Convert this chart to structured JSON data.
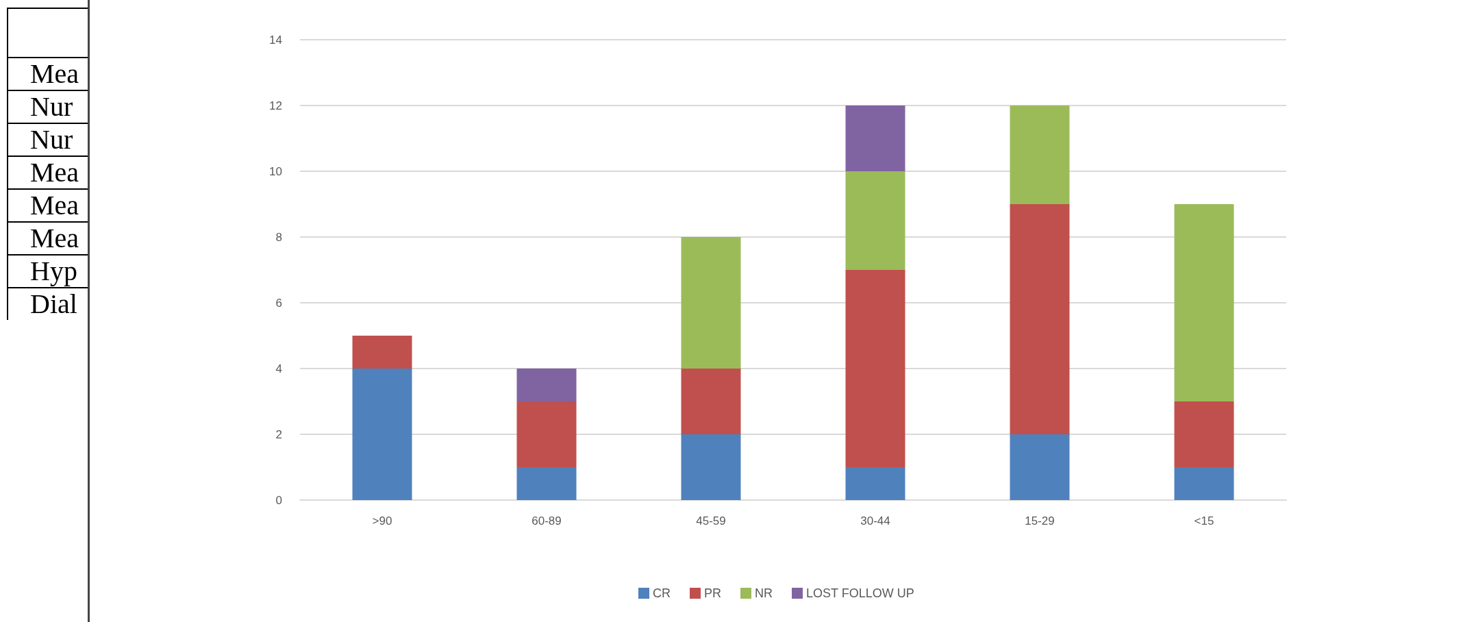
{
  "chart_data": {
    "type": "bar",
    "stacked": true,
    "categories": [
      ">90",
      "60-89",
      "45-59",
      "30-44",
      "15-29",
      "<15"
    ],
    "series": [
      {
        "name": "CR",
        "color": "#4f81bd",
        "values": [
          4,
          1,
          2,
          1,
          2,
          1
        ]
      },
      {
        "name": "PR",
        "color": "#c0504d",
        "values": [
          1,
          2,
          2,
          6,
          7,
          2
        ]
      },
      {
        "name": "NR",
        "color": "#9bbb59",
        "values": [
          null,
          null,
          4,
          3,
          3,
          6
        ]
      },
      {
        "name": "LOST FOLLOW UP",
        "color": "#8064a2",
        "values": [
          null,
          1,
          null,
          2,
          null,
          null
        ]
      }
    ],
    "ylim": [
      0,
      14
    ],
    "yticks": [
      0,
      2,
      4,
      6,
      8,
      10,
      12,
      14
    ],
    "grid": "y",
    "legend": "bottom",
    "annotations": [
      "Mea",
      "Nur",
      "Nur",
      "Mea",
      "Mea",
      "Mea",
      "Hyp",
      "Dial"
    ]
  }
}
